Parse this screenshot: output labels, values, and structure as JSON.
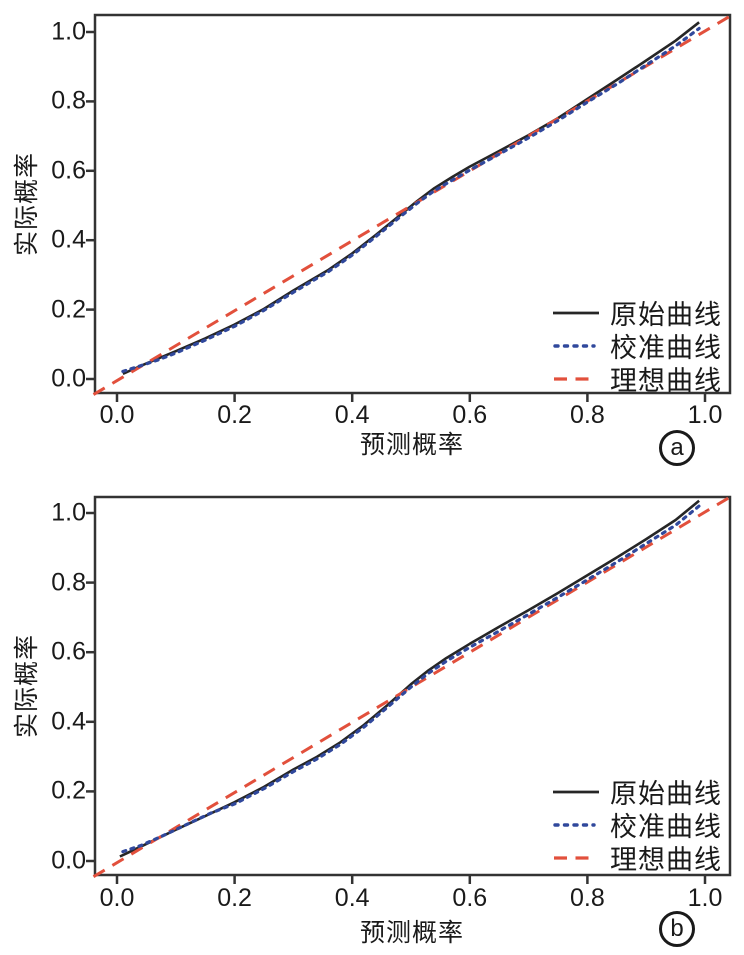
{
  "figure": {
    "background": "#ffffff",
    "frame_color": "#333333"
  },
  "panels": [
    {
      "label": "a",
      "xlabel": "预测概率",
      "ylabel": "实际概率",
      "x_ticks": [
        "0.0",
        "0.2",
        "0.4",
        "0.6",
        "0.8",
        "1.0"
      ],
      "y_ticks": [
        "1.0",
        "0.8",
        "0.6",
        "0.4",
        "0.2",
        "0.0"
      ],
      "legend": [
        {
          "name": "原始曲线",
          "style": "solid",
          "color": "#262626"
        },
        {
          "name": "校准曲线",
          "style": "dotted",
          "color": "#30489c"
        },
        {
          "name": "理想曲线",
          "style": "dashed",
          "color": "#e2503c"
        }
      ]
    },
    {
      "label": "b",
      "xlabel": "预测概率",
      "ylabel": "实际概率",
      "x_ticks": [
        "0.0",
        "0.2",
        "0.4",
        "0.6",
        "0.8",
        "1.0"
      ],
      "y_ticks": [
        "1.0",
        "0.8",
        "0.6",
        "0.4",
        "0.2",
        "0.0"
      ],
      "legend": [
        {
          "name": "原始曲线",
          "style": "solid",
          "color": "#262626"
        },
        {
          "name": "校准曲线",
          "style": "dotted",
          "color": "#30489c"
        },
        {
          "name": "理想曲线",
          "style": "dashed",
          "color": "#e2503c"
        }
      ]
    }
  ],
  "chart_data": [
    {
      "type": "line",
      "title": "",
      "panel_label": "a",
      "xlabel": "预测概率",
      "ylabel": "实际概率",
      "xlim": [
        -0.045,
        1.045
      ],
      "ylim": [
        -0.045,
        1.05
      ],
      "x_tick_values": [
        0.0,
        0.2,
        0.4,
        0.6,
        0.8,
        1.0
      ],
      "y_tick_values": [
        0.0,
        0.2,
        0.4,
        0.6,
        0.8,
        1.0
      ],
      "grid": false,
      "legend_position": "lower right",
      "frame_color": "#333333",
      "series": [
        {
          "name": "原始曲线",
          "style": "solid",
          "color": "#262626",
          "points": [
            [
              0.01,
              0.015
            ],
            [
              0.05,
              0.045
            ],
            [
              0.1,
              0.08
            ],
            [
              0.15,
              0.117
            ],
            [
              0.2,
              0.157
            ],
            [
              0.25,
              0.202
            ],
            [
              0.3,
              0.255
            ],
            [
              0.33,
              0.285
            ],
            [
              0.36,
              0.315
            ],
            [
              0.4,
              0.362
            ],
            [
              0.44,
              0.415
            ],
            [
              0.48,
              0.47
            ],
            [
              0.51,
              0.512
            ],
            [
              0.54,
              0.55
            ],
            [
              0.57,
              0.582
            ],
            [
              0.6,
              0.612
            ],
            [
              0.65,
              0.657
            ],
            [
              0.7,
              0.703
            ],
            [
              0.75,
              0.752
            ],
            [
              0.8,
              0.807
            ],
            [
              0.85,
              0.862
            ],
            [
              0.9,
              0.918
            ],
            [
              0.95,
              0.975
            ],
            [
              0.99,
              1.028
            ]
          ]
        },
        {
          "name": "理想曲线",
          "style": "dashed",
          "color": "#e2503c",
          "points": [
            [
              -0.04,
              -0.045
            ],
            [
              1.045,
              1.048
            ]
          ]
        },
        {
          "name": "校准曲线",
          "style": "dotted",
          "color": "#30489c",
          "points": [
            [
              0.01,
              0.022
            ],
            [
              0.04,
              0.038
            ],
            [
              0.07,
              0.055
            ],
            [
              0.1,
              0.075
            ],
            [
              0.15,
              0.112
            ],
            [
              0.2,
              0.152
            ],
            [
              0.25,
              0.198
            ],
            [
              0.3,
              0.25
            ],
            [
              0.33,
              0.28
            ],
            [
              0.36,
              0.31
            ],
            [
              0.4,
              0.357
            ],
            [
              0.44,
              0.41
            ],
            [
              0.48,
              0.465
            ],
            [
              0.51,
              0.506
            ],
            [
              0.54,
              0.543
            ],
            [
              0.57,
              0.573
            ],
            [
              0.6,
              0.602
            ],
            [
              0.65,
              0.648
            ],
            [
              0.7,
              0.695
            ],
            [
              0.75,
              0.745
            ],
            [
              0.8,
              0.798
            ],
            [
              0.85,
              0.85
            ],
            [
              0.9,
              0.905
            ],
            [
              0.95,
              0.96
            ],
            [
              0.99,
              1.01
            ]
          ]
        }
      ]
    },
    {
      "type": "line",
      "title": "",
      "panel_label": "b",
      "xlabel": "预测概率",
      "ylabel": "实际概率",
      "xlim": [
        -0.045,
        1.045
      ],
      "ylim": [
        -0.045,
        1.05
      ],
      "x_tick_values": [
        0.0,
        0.2,
        0.4,
        0.6,
        0.8,
        1.0
      ],
      "y_tick_values": [
        0.0,
        0.2,
        0.4,
        0.6,
        0.8,
        1.0
      ],
      "grid": false,
      "legend_position": "lower right",
      "frame_color": "#333333",
      "series": [
        {
          "name": "原始曲线",
          "style": "solid",
          "color": "#262626",
          "points": [
            [
              0.005,
              0.013
            ],
            [
              0.05,
              0.049
            ],
            [
              0.1,
              0.09
            ],
            [
              0.15,
              0.129
            ],
            [
              0.2,
              0.169
            ],
            [
              0.25,
              0.213
            ],
            [
              0.3,
              0.263
            ],
            [
              0.34,
              0.299
            ],
            [
              0.38,
              0.341
            ],
            [
              0.42,
              0.391
            ],
            [
              0.46,
              0.448
            ],
            [
              0.5,
              0.508
            ],
            [
              0.53,
              0.548
            ],
            [
              0.56,
              0.583
            ],
            [
              0.6,
              0.624
            ],
            [
              0.65,
              0.673
            ],
            [
              0.7,
              0.721
            ],
            [
              0.75,
              0.77
            ],
            [
              0.8,
              0.821
            ],
            [
              0.85,
              0.872
            ],
            [
              0.9,
              0.925
            ],
            [
              0.95,
              0.98
            ],
            [
              0.99,
              1.035
            ]
          ]
        },
        {
          "name": "理想曲线",
          "style": "dashed",
          "color": "#e2503c",
          "points": [
            [
              -0.04,
              -0.045
            ],
            [
              1.04,
              1.043
            ]
          ]
        },
        {
          "name": "校准曲线",
          "style": "dotted",
          "color": "#30489c",
          "points": [
            [
              0.01,
              0.027
            ],
            [
              0.04,
              0.044
            ],
            [
              0.08,
              0.074
            ],
            [
              0.12,
              0.106
            ],
            [
              0.16,
              0.138
            ],
            [
              0.2,
              0.164
            ],
            [
              0.25,
              0.208
            ],
            [
              0.3,
              0.257
            ],
            [
              0.34,
              0.293
            ],
            [
              0.38,
              0.335
            ],
            [
              0.42,
              0.385
            ],
            [
              0.46,
              0.442
            ],
            [
              0.5,
              0.5
            ],
            [
              0.53,
              0.54
            ],
            [
              0.56,
              0.574
            ],
            [
              0.6,
              0.614
            ],
            [
              0.65,
              0.661
            ],
            [
              0.7,
              0.709
            ],
            [
              0.75,
              0.758
            ],
            [
              0.8,
              0.808
            ],
            [
              0.85,
              0.859
            ],
            [
              0.9,
              0.912
            ],
            [
              0.95,
              0.965
            ],
            [
              0.99,
              1.02
            ]
          ]
        }
      ]
    }
  ]
}
